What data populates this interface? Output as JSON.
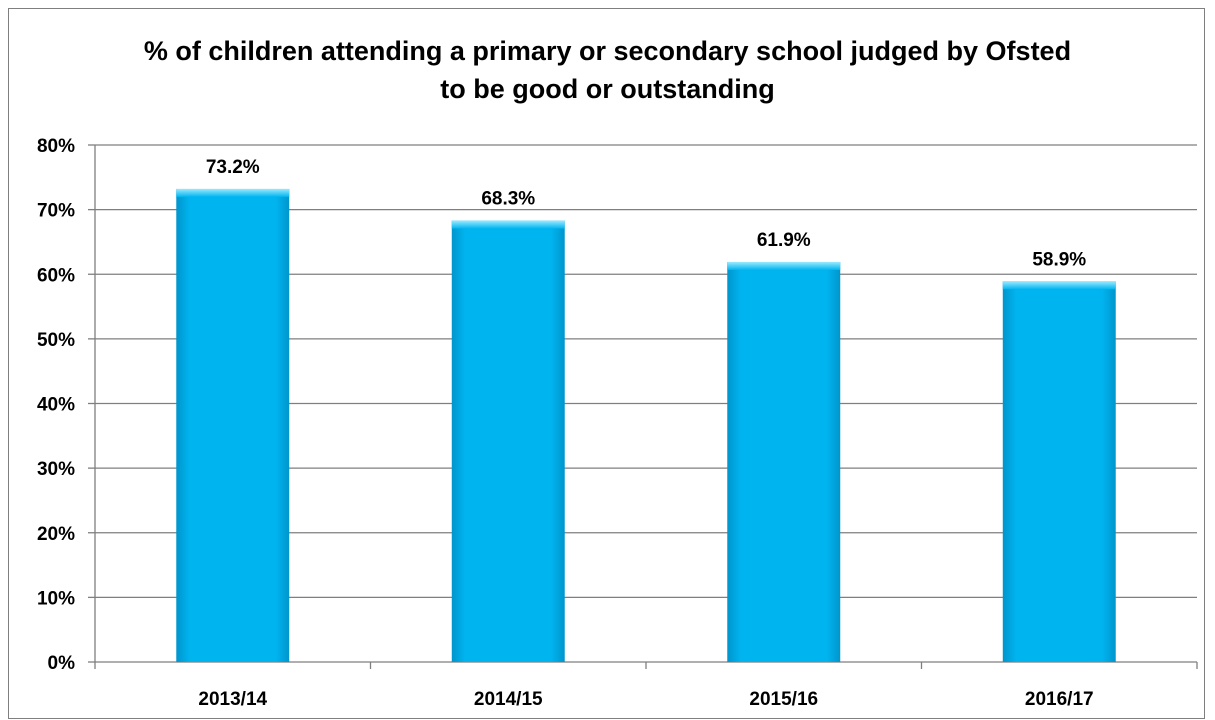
{
  "chart_data": {
    "type": "bar",
    "title_lines": [
      "% of children attending a primary or secondary school judged by Ofsted",
      "to be good or outstanding"
    ],
    "categories": [
      "2013/14",
      "2014/15",
      "2015/16",
      "2016/17"
    ],
    "values": [
      73.2,
      68.3,
      61.9,
      58.9
    ],
    "data_labels": [
      "73.2%",
      "68.3%",
      "61.9%",
      "58.9%"
    ],
    "yticks": [
      0,
      10,
      20,
      30,
      40,
      50,
      60,
      70,
      80
    ],
    "ytick_labels": [
      "0%",
      "10%",
      "20%",
      "30%",
      "40%",
      "50%",
      "60%",
      "70%",
      "80%"
    ],
    "ylim": [
      0,
      80
    ],
    "grid": true,
    "legend": "none",
    "bar_color": "#00b4f0",
    "bar_highlight": "#7fe0ff",
    "bar_shadow": "#0092c4",
    "gridline_color": "#7f7f7f"
  }
}
